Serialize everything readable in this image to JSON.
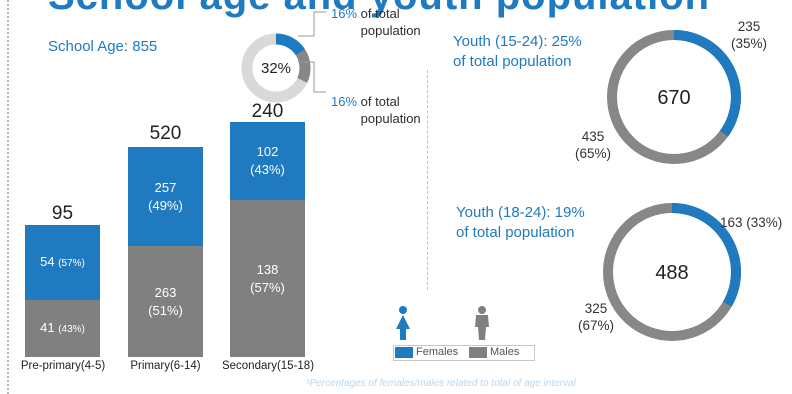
{
  "title_partial": "School age and youth population",
  "chart_data": [
    {
      "type": "bar",
      "stacked": true,
      "title": "School Age: 855",
      "categories": [
        "Pre-primary(4-5)",
        "Primary(6-14)",
        "Secondary(15-18)"
      ],
      "totals": [
        95,
        520,
        240
      ],
      "series": [
        {
          "name": "Females",
          "values": [
            54,
            257,
            102
          ],
          "labels": [
            "54",
            "257",
            "102"
          ],
          "pct_labels": [
            "(57%)",
            "(49%)",
            "(43%)"
          ],
          "color": "#1f7ac0"
        },
        {
          "name": "Males",
          "values": [
            41,
            263,
            138
          ],
          "labels": [
            "41",
            "263",
            "138"
          ],
          "pct_labels": [
            "(43%)",
            "(51%)",
            "(57%)"
          ],
          "color": "#808080"
        }
      ],
      "total_labels": [
        "95",
        "520",
        "240"
      ]
    },
    {
      "type": "pie",
      "center_label": "32%",
      "values": [
        16,
        16
      ],
      "annotations": [
        {
          "pct": "16%",
          "rest": "of total population"
        },
        {
          "pct": "16%",
          "rest": "of total population"
        }
      ]
    },
    {
      "type": "pie",
      "title": "Youth (15-24): 25% of total population",
      "title_lines": [
        "Youth (15-24): 25%",
        "of total population"
      ],
      "center_label": "670",
      "values": [
        235,
        435
      ],
      "percents": [
        35,
        65
      ],
      "labels": [
        [
          "235",
          "(35%)"
        ],
        [
          "435",
          "(65%)"
        ]
      ]
    },
    {
      "type": "pie",
      "title": "Youth (18-24): 19% of total population",
      "title_lines": [
        "Youth (18-24): 19%",
        "of total population"
      ],
      "center_label": "488",
      "values": [
        163,
        325
      ],
      "percents": [
        33,
        67
      ],
      "labels": [
        [
          "163 (33%)"
        ],
        [
          "325",
          "(67%)"
        ]
      ]
    }
  ],
  "legend": {
    "females": "Females",
    "males": "Males"
  },
  "colors": {
    "female": "#1f7ac0",
    "male": "#808080",
    "donut_grey": "#878787",
    "donut_light": "#d9d9d9"
  },
  "icons": {
    "female": "female-person-icon",
    "male": "male-person-icon"
  },
  "footnote": "¹Percentages of females/males related to total of age interval"
}
